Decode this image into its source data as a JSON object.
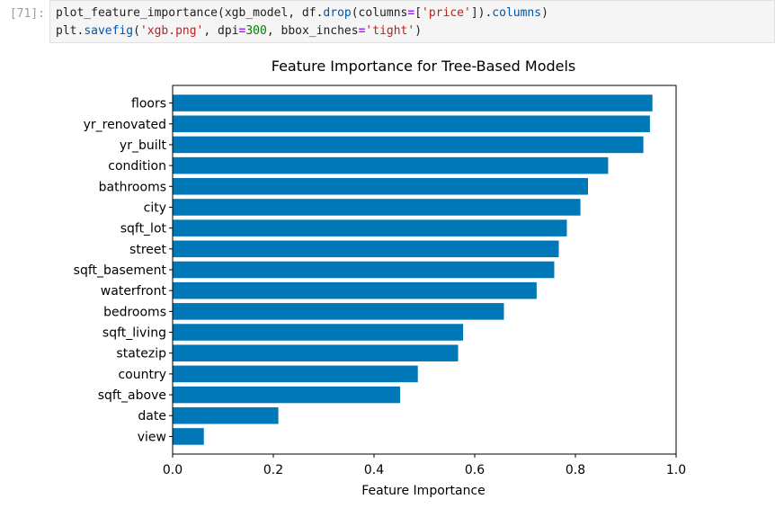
{
  "cell": {
    "prompt": "[71]:",
    "line1": {
      "a": "plot_feature_importance(xgb_model, df.",
      "b": "drop",
      "c": "(columns",
      "d": "=",
      "e": "[",
      "f": "'price'",
      "g": "]).",
      "h": "columns",
      "i": ")"
    },
    "line2": {
      "a": "plt.",
      "b": "savefig",
      "c": "(",
      "d": "'xgb.png'",
      "e": ", dpi",
      "f": "=",
      "g": "300",
      "h": ", bbox_inches",
      "i": "=",
      "j": "'tight'",
      "k": ")"
    }
  },
  "chart_data": {
    "type": "bar",
    "orientation": "horizontal",
    "title": "Feature Importance for Tree-Based Models",
    "xlabel": "Feature Importance",
    "ylabel": "",
    "xlim": [
      0,
      1.0
    ],
    "xticks": [
      "0.0",
      "0.2",
      "0.4",
      "0.6",
      "0.8",
      "1.0"
    ],
    "bar_color": "#0077b6",
    "grid": false,
    "categories": [
      "floors",
      "yr_renovated",
      "yr_built",
      "condition",
      "bathrooms",
      "city",
      "sqft_lot",
      "street",
      "sqft_basement",
      "waterfront",
      "bedrooms",
      "sqft_living",
      "statezip",
      "country",
      "sqft_above",
      "date",
      "view"
    ],
    "values": [
      0.953,
      0.948,
      0.935,
      0.865,
      0.825,
      0.81,
      0.783,
      0.767,
      0.758,
      0.723,
      0.658,
      0.577,
      0.567,
      0.487,
      0.452,
      0.21,
      0.062
    ]
  }
}
